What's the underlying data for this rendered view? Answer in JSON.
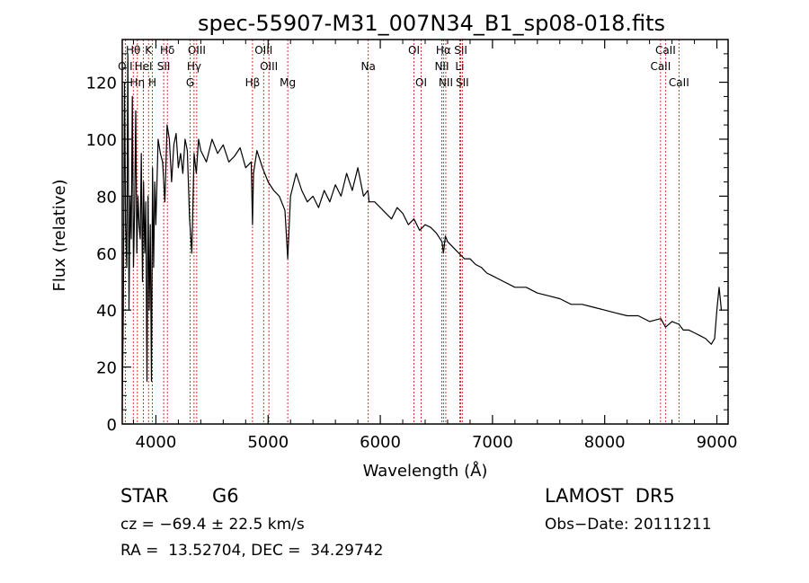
{
  "chart_data": {
    "type": "line",
    "title": "spec-55907-M31_007N34_B1_sp08-018.fits",
    "xlabel": "Wavelength (Å)",
    "ylabel": "Flux (relative)",
    "xlim": [
      3700,
      9100
    ],
    "ylim": [
      0,
      135
    ],
    "x_ticks": [
      4000,
      5000,
      6000,
      7000,
      8000,
      9000
    ],
    "y_ticks": [
      0,
      20,
      40,
      60,
      80,
      100,
      120
    ],
    "grid": false,
    "series": [
      {
        "color": "#000000",
        "x": [
          3700,
          3710,
          3720,
          3730,
          3740,
          3750,
          3760,
          3770,
          3780,
          3790,
          3800,
          3810,
          3820,
          3830,
          3840,
          3850,
          3860,
          3870,
          3880,
          3890,
          3900,
          3910,
          3920,
          3930,
          3940,
          3950,
          3960,
          3970,
          3980,
          3990,
          4000,
          4020,
          4040,
          4060,
          4080,
          4100,
          4120,
          4140,
          4160,
          4180,
          4200,
          4220,
          4240,
          4260,
          4280,
          4300,
          4320,
          4340,
          4360,
          4380,
          4400,
          4450,
          4500,
          4550,
          4600,
          4650,
          4700,
          4750,
          4800,
          4850,
          4861,
          4870,
          4900,
          4950,
          5000,
          5050,
          5100,
          5150,
          5175,
          5200,
          5250,
          5300,
          5350,
          5400,
          5450,
          5500,
          5550,
          5600,
          5650,
          5700,
          5750,
          5800,
          5850,
          5890,
          5900,
          5950,
          6000,
          6050,
          6100,
          6150,
          6200,
          6250,
          6300,
          6350,
          6400,
          6450,
          6500,
          6550,
          6563,
          6580,
          6600,
          6650,
          6700,
          6750,
          6800,
          6850,
          6900,
          6950,
          7000,
          7100,
          7200,
          7300,
          7400,
          7500,
          7600,
          7700,
          7800,
          7900,
          8000,
          8100,
          8200,
          8300,
          8400,
          8500,
          8542,
          8600,
          8662,
          8700,
          8750,
          8800,
          8850,
          8900,
          8950,
          8980,
          9000,
          9020,
          9040
        ],
        "y": [
          5,
          40,
          120,
          70,
          55,
          130,
          40,
          80,
          65,
          115,
          55,
          75,
          110,
          60,
          80,
          70,
          65,
          95,
          50,
          85,
          60,
          78,
          15,
          80,
          40,
          70,
          15,
          90,
          55,
          85,
          70,
          100,
          95,
          92,
          78,
          105,
          100,
          85,
          98,
          102,
          90,
          95,
          88,
          100,
          96,
          72,
          60,
          95,
          88,
          100,
          96,
          92,
          100,
          95,
          98,
          92,
          94,
          97,
          90,
          92,
          70,
          88,
          96,
          90,
          85,
          82,
          80,
          75,
          58,
          80,
          88,
          82,
          78,
          80,
          76,
          82,
          78,
          84,
          80,
          88,
          82,
          90,
          80,
          82,
          78,
          78,
          76,
          74,
          72,
          76,
          74,
          70,
          72,
          68,
          70,
          69,
          67,
          64,
          60,
          66,
          64,
          62,
          60,
          58,
          58,
          56,
          55,
          53,
          52,
          50,
          48,
          48,
          46,
          45,
          44,
          42,
          42,
          41,
          40,
          39,
          38,
          38,
          36,
          37,
          34,
          36,
          35,
          33,
          33,
          32,
          31,
          30,
          28,
          30,
          40,
          48,
          40
        ]
      }
    ],
    "line_annotations": [
      {
        "label": "Hθ",
        "x": 3798
      },
      {
        "label": "K",
        "x": 3934
      },
      {
        "label": "Hδ",
        "x": 4102
      },
      {
        "label": "OIII",
        "x": 4364
      },
      {
        "label": "OIII",
        "x": 4960
      },
      {
        "label": "OI",
        "x": 6300
      },
      {
        "label": "Hα",
        "x": 6563
      },
      {
        "label": "SII",
        "x": 6717
      },
      {
        "label": "CaII",
        "x": 8542
      },
      {
        "label": "OII",
        "x": 3727
      },
      {
        "label": "HeI",
        "x": 3889
      },
      {
        "label": "SII",
        "x": 4069
      },
      {
        "label": "Hγ",
        "x": 4340
      },
      {
        "label": "OIII",
        "x": 5007
      },
      {
        "label": "Na",
        "x": 5893
      },
      {
        "label": "NII",
        "x": 6548
      },
      {
        "label": "Li",
        "x": 6708
      },
      {
        "label": "CaII",
        "x": 8498
      },
      {
        "label": "Hη",
        "x": 3835
      },
      {
        "label": "H",
        "x": 3969
      },
      {
        "label": "G",
        "x": 4305
      },
      {
        "label": "Hβ",
        "x": 4861
      },
      {
        "label": "Mg",
        "x": 5175
      },
      {
        "label": "OI",
        "x": 6364
      },
      {
        "label": "NII",
        "x": 6584
      },
      {
        "label": "SII",
        "x": 6731
      },
      {
        "label": "CaII",
        "x": 8662
      }
    ]
  },
  "info": {
    "class_label": "STAR",
    "subclass": "G6",
    "survey": "LAMOST  DR5",
    "cz": "cz = −69.4 ± 22.5 km/s",
    "obs_date": "Obs−Date: 20111211",
    "coords": "RA =  13.52704, DEC =  34.29742"
  }
}
